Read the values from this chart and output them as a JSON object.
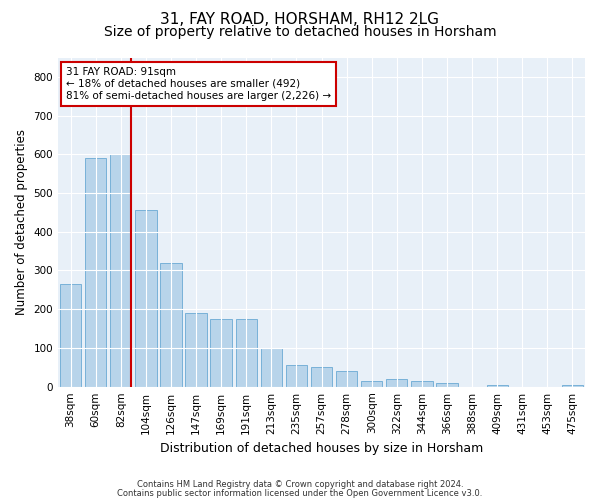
{
  "title1": "31, FAY ROAD, HORSHAM, RH12 2LG",
  "title2": "Size of property relative to detached houses in Horsham",
  "xlabel": "Distribution of detached houses by size in Horsham",
  "ylabel": "Number of detached properties",
  "categories": [
    "38sqm",
    "60sqm",
    "82sqm",
    "104sqm",
    "126sqm",
    "147sqm",
    "169sqm",
    "191sqm",
    "213sqm",
    "235sqm",
    "257sqm",
    "278sqm",
    "300sqm",
    "322sqm",
    "344sqm",
    "366sqm",
    "388sqm",
    "409sqm",
    "431sqm",
    "453sqm",
    "475sqm"
  ],
  "values": [
    265,
    590,
    600,
    455,
    320,
    190,
    175,
    175,
    100,
    55,
    50,
    40,
    15,
    20,
    15,
    10,
    0,
    5,
    0,
    0,
    5
  ],
  "bar_color": "#b8d4ea",
  "bar_edge_color": "#6aaad4",
  "vline_color": "#cc0000",
  "annotation_text": "31 FAY ROAD: 91sqm\n← 18% of detached houses are smaller (492)\n81% of semi-detached houses are larger (2,226) →",
  "annotation_box_color": "#ffffff",
  "annotation_box_edge": "#cc0000",
  "ylim": [
    0,
    850
  ],
  "yticks": [
    0,
    100,
    200,
    300,
    400,
    500,
    600,
    700,
    800
  ],
  "footer1": "Contains HM Land Registry data © Crown copyright and database right 2024.",
  "footer2": "Contains public sector information licensed under the Open Government Licence v3.0.",
  "plot_bg_color": "#e8f0f8",
  "grid_color": "#ffffff",
  "title1_fontsize": 11,
  "title2_fontsize": 10,
  "tick_fontsize": 7.5,
  "xlabel_fontsize": 9,
  "ylabel_fontsize": 8.5,
  "annotation_fontsize": 7.5,
  "footer_fontsize": 6
}
